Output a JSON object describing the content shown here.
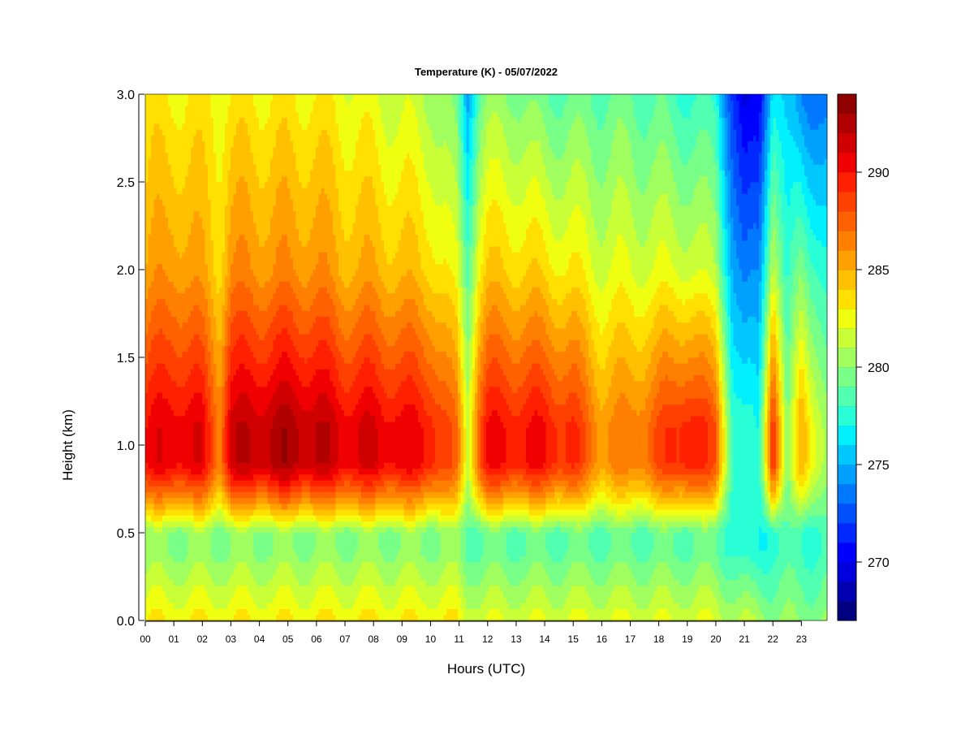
{
  "chart_data": {
    "type": "heatmap",
    "title": "Temperature (K) - 05/07/2022",
    "xlabel": "Hours (UTC)",
    "ylabel": "Height (km)",
    "xlim": [
      0,
      23.9
    ],
    "ylim": [
      0.0,
      3.0
    ],
    "x_ticks": [
      "00",
      "01",
      "02",
      "03",
      "04",
      "05",
      "06",
      "07",
      "08",
      "09",
      "10",
      "11",
      "12",
      "13",
      "14",
      "15",
      "16",
      "17",
      "18",
      "19",
      "20",
      "21",
      "22",
      "23"
    ],
    "y_ticks": [
      "0.0",
      "0.5",
      "1.0",
      "1.5",
      "2.0",
      "2.5",
      "3.0"
    ],
    "colorbar": {
      "range": [
        267,
        294
      ],
      "levels": 27,
      "ticks": [
        "270",
        "275",
        "280",
        "285",
        "290"
      ],
      "colors": [
        "#000080",
        "#0000b0",
        "#0000df",
        "#0000ff",
        "#0028ff",
        "#0050ff",
        "#0078ff",
        "#00a0ff",
        "#00c8ff",
        "#00f0ff",
        "#28ffd7",
        "#50ffaf",
        "#78ff87",
        "#a0ff5f",
        "#c8ff37",
        "#f0ff0f",
        "#ffe000",
        "#ffc000",
        "#ffa000",
        "#ff8000",
        "#ff6000",
        "#ff4000",
        "#ff2000",
        "#f00000",
        "#d00000",
        "#b00000",
        "#900000"
      ]
    },
    "time_profiles": [
      {
        "hour": 0.0,
        "surface": 283,
        "mixed": 280,
        "peak": 290,
        "upper": 285,
        "top": 283
      },
      {
        "hour": 1.0,
        "surface": 283,
        "mixed": 280,
        "peak": 291,
        "upper": 286,
        "top": 283
      },
      {
        "hour": 2.0,
        "surface": 283,
        "mixed": 280,
        "peak": 290.5,
        "upper": 285,
        "top": 283
      },
      {
        "hour": 2.6,
        "surface": 283,
        "mixed": 280,
        "peak": 287,
        "upper": 284,
        "top": 283
      },
      {
        "hour": 3.0,
        "surface": 283,
        "mixed": 280,
        "peak": 291.5,
        "upper": 286,
        "top": 283
      },
      {
        "hour": 4.0,
        "surface": 283,
        "mixed": 280,
        "peak": 292,
        "upper": 286,
        "top": 283
      },
      {
        "hour": 5.0,
        "surface": 283,
        "mixed": 280,
        "peak": 292.5,
        "upper": 286,
        "top": 283
      },
      {
        "hour": 6.0,
        "surface": 283,
        "mixed": 280,
        "peak": 292,
        "upper": 286,
        "top": 283
      },
      {
        "hour": 7.0,
        "surface": 283,
        "mixed": 280,
        "peak": 291,
        "upper": 285,
        "top": 282.5
      },
      {
        "hour": 8.0,
        "surface": 283,
        "mixed": 280,
        "peak": 291,
        "upper": 285,
        "top": 282
      },
      {
        "hour": 9.0,
        "surface": 283,
        "mixed": 280,
        "peak": 290.5,
        "upper": 284.5,
        "top": 281.5
      },
      {
        "hour": 10.0,
        "surface": 283,
        "mixed": 280,
        "peak": 290,
        "upper": 284,
        "top": 281
      },
      {
        "hour": 10.9,
        "surface": 283,
        "mixed": 280,
        "peak": 287,
        "upper": 282,
        "top": 279
      },
      {
        "hour": 11.3,
        "surface": 282,
        "mixed": 279,
        "peak": 282,
        "upper": 279,
        "top": 275
      },
      {
        "hour": 11.7,
        "surface": 282,
        "mixed": 279,
        "peak": 288,
        "upper": 283,
        "top": 279
      },
      {
        "hour": 12.0,
        "surface": 282,
        "mixed": 279,
        "peak": 290,
        "upper": 284,
        "top": 280
      },
      {
        "hour": 13.0,
        "surface": 282,
        "mixed": 279,
        "peak": 290,
        "upper": 284,
        "top": 280
      },
      {
        "hour": 14.0,
        "surface": 282,
        "mixed": 279,
        "peak": 290,
        "upper": 283.5,
        "top": 279
      },
      {
        "hour": 15.0,
        "surface": 282,
        "mixed": 279,
        "peak": 289,
        "upper": 283,
        "top": 279
      },
      {
        "hour": 16.0,
        "surface": 282,
        "mixed": 279,
        "peak": 286,
        "upper": 282,
        "top": 279
      },
      {
        "hour": 17.0,
        "surface": 282,
        "mixed": 279,
        "peak": 286.5,
        "upper": 282,
        "top": 279
      },
      {
        "hour": 18.0,
        "surface": 282,
        "mixed": 279,
        "peak": 288,
        "upper": 282,
        "top": 278.5
      },
      {
        "hour": 19.0,
        "surface": 282,
        "mixed": 279,
        "peak": 290,
        "upper": 282,
        "top": 278
      },
      {
        "hour": 20.0,
        "surface": 282,
        "mixed": 279,
        "peak": 288,
        "upper": 281,
        "top": 277.5
      },
      {
        "hour": 20.6,
        "surface": 281,
        "mixed": 278,
        "peak": 278,
        "upper": 275,
        "top": 272
      },
      {
        "hour": 21.0,
        "surface": 281,
        "mixed": 277,
        "peak": 277,
        "upper": 273,
        "top": 269
      },
      {
        "hour": 21.5,
        "surface": 281,
        "mixed": 277,
        "peak": 277,
        "upper": 274,
        "top": 270
      },
      {
        "hour": 22.0,
        "surface": 280,
        "mixed": 278,
        "peak": 290,
        "upper": 282,
        "top": 277
      },
      {
        "hour": 22.5,
        "surface": 280,
        "mixed": 278,
        "peak": 279,
        "upper": 277,
        "top": 275
      },
      {
        "hour": 23.0,
        "surface": 280,
        "mixed": 278,
        "peak": 285.5,
        "upper": 280,
        "top": 274
      },
      {
        "hour": 23.9,
        "surface": 280,
        "mixed": 278,
        "peak": 280,
        "upper": 277,
        "top": 273
      }
    ],
    "profile_heights_km": {
      "surface": 0.0,
      "mixed": 0.4,
      "inversion": 0.5,
      "peak": 1.1,
      "upper": 2.0,
      "top": 3.0
    }
  }
}
